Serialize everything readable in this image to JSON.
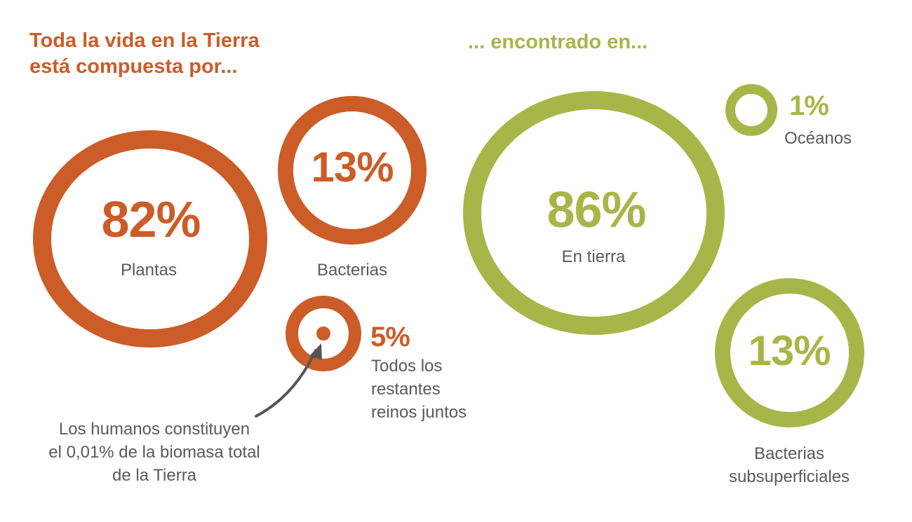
{
  "colors": {
    "composition": "#cc5c28",
    "location": "#a7b648",
    "label": "#5a5a5a",
    "arrow": "#555555"
  },
  "headings": {
    "composition_line1": "Toda la vida en la Tierra",
    "composition_line2": "está compuesta por...",
    "location": "... encontrado en..."
  },
  "chart_data": [
    {
      "type": "bubble",
      "title": "Toda la vida en la Tierra está compuesta por...",
      "unit": "%",
      "items": [
        {
          "label": "Plantas",
          "value": 82,
          "display": "82%"
        },
        {
          "label": "Bacterias",
          "value": 13,
          "display": "13%"
        },
        {
          "label": "Todos los restantes reinos juntos",
          "value": 5,
          "display": "5%"
        }
      ],
      "annotation": {
        "target": "Humanos",
        "value": 0.01,
        "lines": [
          "Los humanos constituyen",
          "el 0,01% de la biomasa total",
          "de la Tierra"
        ]
      }
    },
    {
      "type": "bubble",
      "title": "... encontrado en...",
      "unit": "%",
      "items": [
        {
          "label": "En tierra",
          "value": 86,
          "display": "86%"
        },
        {
          "label": "Océanos",
          "value": 1,
          "display": "1%"
        },
        {
          "label": "Bacterias subsuperficiales",
          "value": 13,
          "display": "13%"
        }
      ]
    }
  ],
  "labels": {
    "plantas": "Plantas",
    "bacterias": "Bacterias",
    "resto": [
      "Todos los",
      "restantes",
      "reinos juntos"
    ],
    "en_tierra": "En tierra",
    "oceanos": "Océanos",
    "subsuperficiales": [
      "Bacterias",
      "subsuperficiales"
    ]
  }
}
